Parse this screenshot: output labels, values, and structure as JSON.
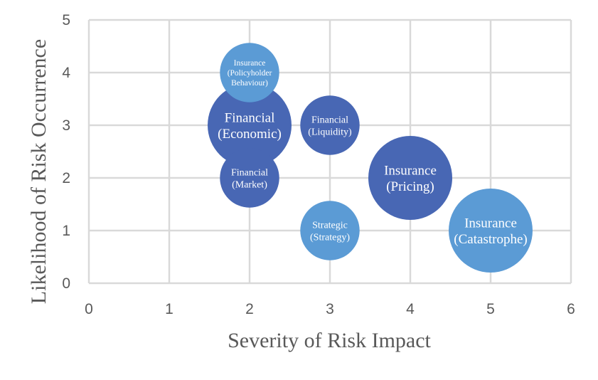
{
  "chart_data": {
    "type": "bubble",
    "xlabel": "Severity of Risk Impact",
    "ylabel": "Likelihood of Risk Occurrence",
    "xlim": [
      0,
      6
    ],
    "ylim": [
      0,
      5
    ],
    "xticks": [
      "0",
      "1",
      "2",
      "3",
      "4",
      "5",
      "6"
    ],
    "yticks": [
      "0",
      "1",
      "2",
      "3",
      "4",
      "5"
    ],
    "grid": true,
    "legend": "none",
    "colors": {
      "dark": "#4867b4",
      "light": "#5b9bd5",
      "grid": "#d9d9d9"
    },
    "bubbles": [
      {
        "lines": [
          "Financial",
          "(Economic)"
        ],
        "x": 2,
        "y": 3,
        "size": 3.0,
        "tone": "dark"
      },
      {
        "lines": [
          "Insurance",
          "(Pricing)"
        ],
        "x": 4,
        "y": 2,
        "size": 3.0,
        "tone": "dark"
      },
      {
        "lines": [
          "Insurance",
          "(Catastrophe)"
        ],
        "x": 5,
        "y": 1,
        "size": 3.0,
        "tone": "light"
      },
      {
        "lines": [
          "Financial",
          "(Liquidity)"
        ],
        "x": 3,
        "y": 3,
        "size": 1.5,
        "tone": "dark"
      },
      {
        "lines": [
          "Financial",
          "(Market)"
        ],
        "x": 2,
        "y": 2,
        "size": 1.5,
        "tone": "dark"
      },
      {
        "lines": [
          "Strategic",
          "(Strategy)"
        ],
        "x": 3,
        "y": 1,
        "size": 1.5,
        "tone": "light"
      },
      {
        "lines": [
          "Insurance",
          "(Policyholder",
          "Behaviour)"
        ],
        "x": 2,
        "y": 4,
        "size": 1.5,
        "tone": "light"
      }
    ]
  }
}
